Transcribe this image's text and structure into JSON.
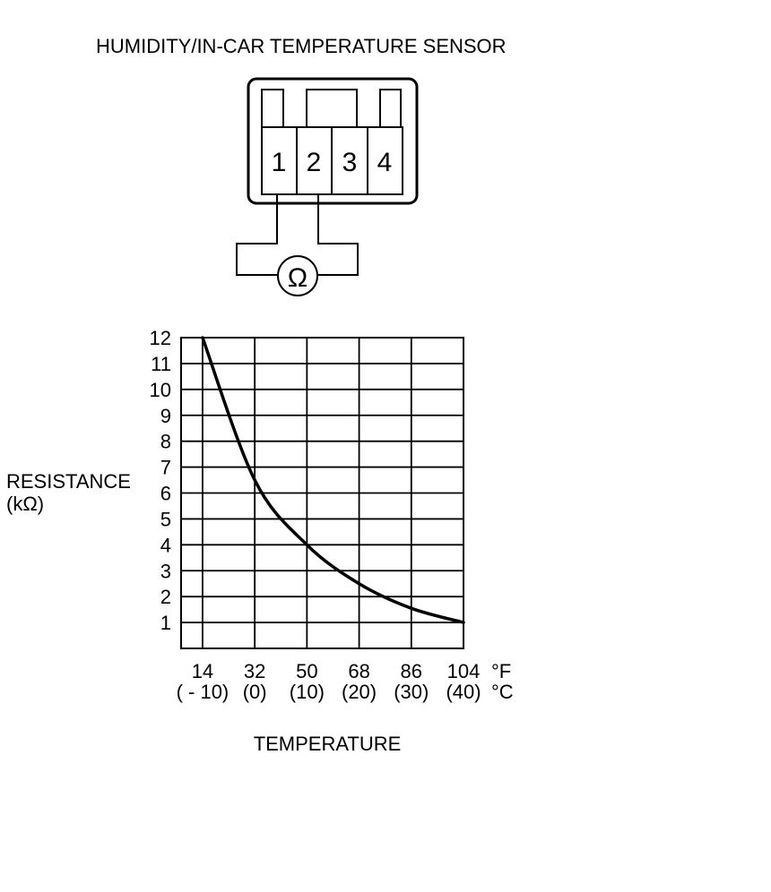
{
  "title": "HUMIDITY/IN-CAR TEMPERATURE SENSOR",
  "connector": {
    "pins": [
      "1",
      "2",
      "3",
      "4"
    ],
    "meter_symbol": "Ω",
    "meter_icon": "ohmmeter-icon",
    "measured_between": [
      "1",
      "2"
    ]
  },
  "chart_data": {
    "type": "line",
    "title": "",
    "ylabel_line1": "RESISTANCE",
    "ylabel_line2": "(kΩ)",
    "xlabel": "TEMPERATURE",
    "x_unit_f": "°F",
    "x_unit_c": "°C",
    "x_ticks_f": [
      "14",
      "32",
      "50",
      "68",
      "86",
      "104"
    ],
    "x_ticks_c": [
      "( - 10)",
      "(0)",
      "(10)",
      "(20)",
      "(30)",
      "(40)"
    ],
    "x_tick_values": [
      14,
      32,
      50,
      68,
      86,
      104
    ],
    "y_ticks": [
      "1",
      "2",
      "3",
      "4",
      "5",
      "6",
      "7",
      "8",
      "9",
      "10",
      "11",
      "12"
    ],
    "xlim": [
      6.6,
      104
    ],
    "ylim": [
      0,
      12
    ],
    "grid": true,
    "series": [
      {
        "x": [
          14,
          32,
          50,
          68,
          86,
          104
        ],
        "values": [
          12,
          6.5,
          4.0,
          2.5,
          1.55,
          1.0
        ],
        "color": "#000000"
      }
    ]
  }
}
